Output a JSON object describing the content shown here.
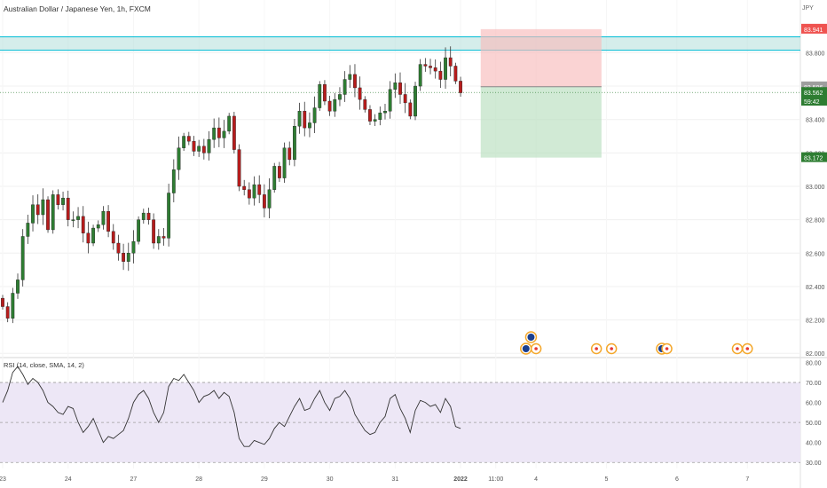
{
  "header": {
    "title": "Australian Dollar / Japanese Yen, 1h, FXCM",
    "currency": "JPY"
  },
  "colors": {
    "up": "#26a69a",
    "down": "#ef5350",
    "candle_body_up": "#2e7d32",
    "candle_body_down": "#b71c1c",
    "zone": "#b2dfdb",
    "zone_line": "#00bcd4",
    "stop": "#f8bbbb",
    "target": "#b9dfbf",
    "rsi_line": "#333333",
    "rsi_band": "#ede7f6",
    "axis_text": "#555555",
    "grid": "#f0f0f0"
  },
  "chart_data": [
    {
      "type": "candlestick",
      "title": "Australian Dollar / Japanese Yen, 1h, FXCM",
      "ylim": [
        81.98,
        84.02
      ],
      "y_ticks": [
        "83.800",
        "83.600",
        "83.400",
        "83.200",
        "83.000",
        "82.800",
        "82.600",
        "82.400",
        "82.200",
        "82.000"
      ],
      "x_ticks": [
        "23",
        "24",
        "27",
        "28",
        "29",
        "30",
        "31",
        "2022",
        "11:00",
        "4",
        "5",
        "6",
        "7"
      ],
      "x_tick_index": [
        0,
        13,
        26,
        39,
        52,
        65,
        78,
        91,
        98,
        106,
        120,
        134,
        148
      ],
      "price_labels": [
        {
          "label": "83.941",
          "value": 83.941,
          "color": "#ef5350"
        },
        {
          "label": "83.596",
          "value": 83.596,
          "color": "#9e9e9e"
        },
        {
          "label": "83.562",
          "value": 83.562,
          "color": "#2e7d32"
        },
        {
          "label": "59:42",
          "value": 83.51,
          "color": "#2e7d32"
        },
        {
          "label": "83.172",
          "value": 83.172,
          "color": "#2e7d32"
        }
      ],
      "zone": {
        "low": 83.815,
        "high": 83.895
      },
      "position": {
        "entry": 83.596,
        "stop": 83.941,
        "target": 83.172,
        "start_index": 95,
        "end_index": 119
      },
      "close": [
        82.28,
        82.21,
        82.36,
        82.44,
        82.7,
        82.78,
        82.89,
        82.83,
        82.92,
        82.74,
        82.95,
        82.89,
        82.93,
        82.8,
        82.8,
        82.82,
        82.72,
        82.66,
        82.75,
        82.77,
        82.85,
        82.73,
        82.66,
        82.6,
        82.55,
        82.6,
        82.67,
        82.8,
        82.84,
        82.8,
        82.66,
        82.7,
        82.69,
        82.96,
        83.1,
        83.23,
        83.3,
        83.27,
        83.21,
        83.24,
        83.2,
        83.28,
        83.35,
        83.29,
        83.33,
        83.42,
        83.22,
        83.0,
        82.98,
        82.93,
        83.01,
        82.95,
        82.87,
        82.98,
        83.12,
        83.05,
        83.23,
        83.16,
        83.36,
        83.45,
        83.35,
        83.38,
        83.47,
        83.61,
        83.51,
        83.45,
        83.52,
        83.55,
        83.64,
        83.67,
        83.59,
        83.52,
        83.46,
        83.39,
        83.4,
        83.44,
        83.45,
        83.58,
        83.62,
        83.55,
        83.5,
        83.42,
        83.6,
        83.73,
        83.72,
        83.71,
        83.69,
        83.64,
        83.77,
        83.72,
        83.63,
        83.56
      ],
      "volume_events": [
        {
          "index": 104,
          "type": "flag"
        },
        {
          "index": 105,
          "type": "flag"
        },
        {
          "index": 106,
          "type": "event"
        },
        {
          "index": 118,
          "type": "event"
        },
        {
          "index": 121,
          "type": "event"
        },
        {
          "index": 131,
          "type": "flag"
        },
        {
          "index": 132,
          "type": "event"
        },
        {
          "index": 146,
          "type": "event"
        },
        {
          "index": 148,
          "type": "event"
        }
      ]
    },
    {
      "type": "line",
      "title": "RSI (14, close, SMA, 14, 2)",
      "ylim": [
        27,
        82
      ],
      "y_ticks": [
        "80.00",
        "70.00",
        "60.00",
        "50.00",
        "40.00",
        "30.00"
      ],
      "band": [
        30,
        70
      ],
      "mid": 50,
      "values": [
        60,
        66,
        75,
        78,
        74,
        69,
        72,
        70,
        66,
        60,
        58,
        55,
        54,
        58,
        57,
        50,
        45,
        48,
        52,
        46,
        40,
        43,
        42,
        44,
        46,
        52,
        60,
        64,
        66,
        62,
        55,
        50,
        55,
        68,
        72,
        71,
        74,
        70,
        66,
        60,
        63,
        64,
        66,
        62,
        65,
        63,
        55,
        42,
        38,
        38,
        41,
        40,
        39,
        42,
        47,
        50,
        48,
        53,
        58,
        62,
        56,
        57,
        62,
        66,
        60,
        56,
        62,
        63,
        66,
        62,
        54,
        50,
        46,
        44,
        45,
        50,
        53,
        62,
        64,
        57,
        52,
        45,
        56,
        61,
        60,
        58,
        59,
        55,
        62,
        58,
        48,
        47
      ]
    }
  ]
}
